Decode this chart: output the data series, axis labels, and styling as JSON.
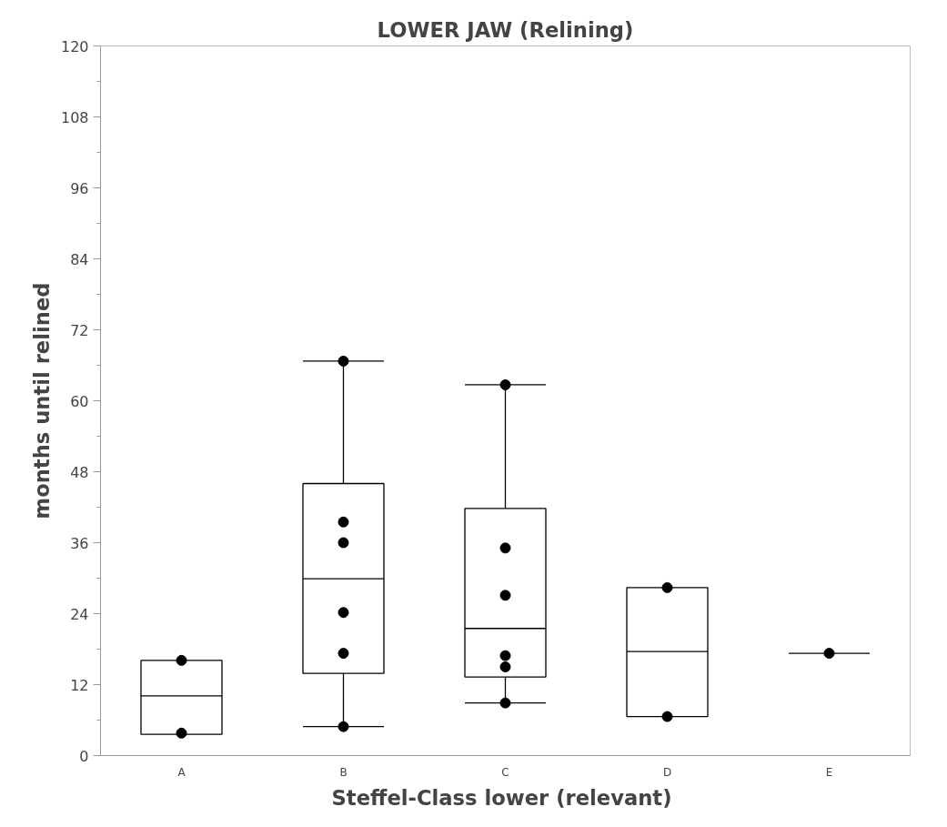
{
  "chart_data": {
    "type": "box",
    "title": "LOWER JAW (Relining)",
    "xlabel": "Steffel-Class  lower (relevant)",
    "ylabel": "months until relined",
    "categories": [
      "A",
      "B",
      "C",
      "D",
      "E"
    ],
    "boxes": [
      {
        "low": 3.6,
        "q1": 3.6,
        "median": 10.1,
        "q3": 16.1,
        "high": 16.1
      },
      {
        "low": 4.9,
        "q1": 13.9,
        "median": 29.9,
        "q3": 46.0,
        "high": 66.7
      },
      {
        "low": 8.9,
        "q1": 13.3,
        "median": 21.5,
        "q3": 41.8,
        "high": 62.7
      },
      {
        "low": 6.6,
        "q1": 6.6,
        "median": 17.6,
        "q3": 28.4,
        "high": 28.4
      },
      {
        "low": 17.3,
        "q1": 17.3,
        "median": 17.3,
        "q3": 17.3,
        "high": 17.3
      }
    ],
    "series": [
      {
        "type": "scatter",
        "color": "#000000",
        "x": [
          "A",
          "A",
          "B",
          "B",
          "B",
          "B",
          "B",
          "B",
          "C",
          "C",
          "C",
          "C",
          "C",
          "C",
          "D",
          "D",
          "E"
        ],
        "values": [
          16.1,
          3.8,
          66.7,
          39.5,
          36.0,
          24.2,
          17.3,
          4.9,
          62.7,
          35.1,
          27.1,
          16.9,
          15.0,
          8.9,
          28.4,
          6.6,
          17.3
        ]
      }
    ],
    "marker": "circle",
    "ylim": [
      0,
      120
    ],
    "yticks": [
      0,
      {
        "value": 6,
        "label": null
      },
      12,
      {
        "value": 18,
        "label": null
      },
      24,
      {
        "value": 30,
        "label": null
      },
      36,
      {
        "value": 42,
        "label": null
      },
      48,
      {
        "value": 54,
        "label": null
      },
      60,
      {
        "value": 66,
        "label": null
      },
      72,
      {
        "value": 78,
        "label": null
      },
      84,
      {
        "value": 90,
        "label": null
      },
      96,
      {
        "value": 102,
        "label": null
      },
      108,
      {
        "value": 114,
        "label": null
      },
      120
    ],
    "grid": false
  }
}
